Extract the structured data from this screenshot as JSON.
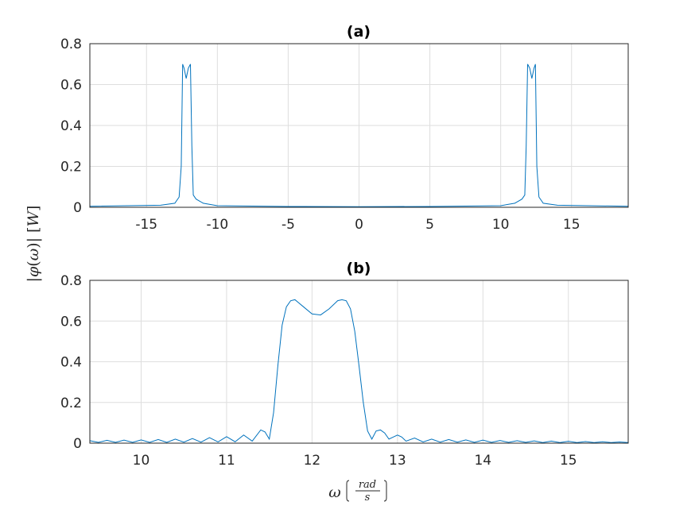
{
  "chart_data": [
    {
      "type": "line",
      "title": "(a)",
      "xlim": [
        -19,
        19
      ],
      "ylim": [
        0,
        0.8
      ],
      "xticks": [
        "-15",
        "-10",
        "-5",
        "0",
        "5",
        "10",
        "15"
      ],
      "yticks": [
        "0",
        "0.2",
        "0.4",
        "0.6",
        "0.8"
      ],
      "grid": true,
      "series": [
        {
          "color": "#0072bd",
          "x": [
            -19,
            -14,
            -13,
            -12.7,
            -12.55,
            -12.45,
            -12.35,
            -12.2,
            -12.05,
            -11.9,
            -11.8,
            -11.7,
            -11.5,
            -11,
            -10,
            -5,
            0,
            5,
            10,
            11,
            11.5,
            11.7,
            11.8,
            11.9,
            12.05,
            12.2,
            12.35,
            12.45,
            12.55,
            12.7,
            13,
            14,
            19
          ],
          "y": [
            0.005,
            0.01,
            0.02,
            0.05,
            0.2,
            0.7,
            0.68,
            0.63,
            0.68,
            0.7,
            0.3,
            0.06,
            0.04,
            0.02,
            0.008,
            0.004,
            0.003,
            0.004,
            0.008,
            0.02,
            0.04,
            0.06,
            0.3,
            0.7,
            0.68,
            0.63,
            0.68,
            0.7,
            0.2,
            0.05,
            0.02,
            0.01,
            0.005
          ]
        }
      ]
    },
    {
      "type": "line",
      "title": "(b)",
      "xlim": [
        9.4,
        15.7
      ],
      "ylim": [
        0,
        0.8
      ],
      "xticks": [
        "10",
        "11",
        "12",
        "13",
        "14",
        "15"
      ],
      "yticks": [
        "0",
        "0.2",
        "0.4",
        "0.6",
        "0.8"
      ],
      "grid": true,
      "series": [
        {
          "color": "#0072bd",
          "x": [
            9.4,
            9.5,
            9.6,
            9.7,
            9.8,
            9.9,
            10.0,
            10.1,
            10.2,
            10.3,
            10.4,
            10.5,
            10.6,
            10.7,
            10.8,
            10.9,
            11.0,
            11.1,
            11.2,
            11.3,
            11.4,
            11.45,
            11.5,
            11.55,
            11.6,
            11.65,
            11.7,
            11.75,
            11.8,
            11.9,
            12.0,
            12.1,
            12.2,
            12.3,
            12.35,
            12.4,
            12.45,
            12.5,
            12.55,
            12.6,
            12.65,
            12.7,
            12.75,
            12.8,
            12.85,
            12.9,
            12.95,
            13.0,
            13.05,
            13.1,
            13.2,
            13.3,
            13.4,
            13.5,
            13.6,
            13.7,
            13.8,
            13.9,
            14.0,
            14.1,
            14.2,
            14.3,
            14.4,
            14.5,
            14.6,
            14.7,
            14.8,
            14.9,
            15.0,
            15.1,
            15.2,
            15.3,
            15.4,
            15.5,
            15.6,
            15.7
          ],
          "y": [
            0.012,
            0.004,
            0.014,
            0.004,
            0.015,
            0.004,
            0.016,
            0.004,
            0.018,
            0.004,
            0.02,
            0.005,
            0.023,
            0.005,
            0.027,
            0.006,
            0.032,
            0.007,
            0.04,
            0.01,
            0.065,
            0.055,
            0.02,
            0.15,
            0.38,
            0.58,
            0.67,
            0.7,
            0.705,
            0.67,
            0.635,
            0.63,
            0.66,
            0.7,
            0.705,
            0.7,
            0.66,
            0.55,
            0.38,
            0.2,
            0.06,
            0.02,
            0.06,
            0.065,
            0.05,
            0.02,
            0.03,
            0.04,
            0.03,
            0.01,
            0.025,
            0.006,
            0.02,
            0.005,
            0.018,
            0.005,
            0.016,
            0.004,
            0.015,
            0.004,
            0.013,
            0.004,
            0.012,
            0.004,
            0.011,
            0.003,
            0.01,
            0.003,
            0.009,
            0.003,
            0.008,
            0.003,
            0.007,
            0.003,
            0.006,
            0.003
          ]
        }
      ]
    }
  ]
}
